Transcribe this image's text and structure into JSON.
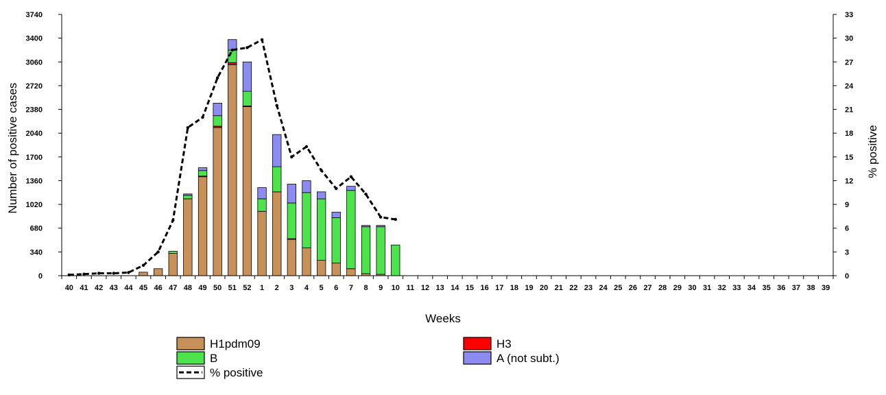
{
  "chart_data": {
    "type": "bar",
    "categories": [
      "40",
      "41",
      "42",
      "43",
      "44",
      "45",
      "46",
      "47",
      "48",
      "49",
      "50",
      "51",
      "52",
      "1",
      "2",
      "3",
      "4",
      "5",
      "6",
      "7",
      "8",
      "9",
      "10",
      "11",
      "12",
      "13",
      "14",
      "15",
      "16",
      "17",
      "18",
      "19",
      "20",
      "21",
      "22",
      "23",
      "24",
      "25",
      "26",
      "27",
      "28",
      "29",
      "30",
      "31",
      "32",
      "33",
      "34",
      "35",
      "36",
      "37",
      "38",
      "39"
    ],
    "series": [
      {
        "name": "H1pdm09",
        "color": "#c8915a",
        "values": [
          0,
          0,
          0,
          0,
          0,
          50,
          100,
          320,
          1100,
          1420,
          2120,
          3020,
          2420,
          920,
          1200,
          520,
          400,
          220,
          180,
          100,
          30,
          20,
          0,
          0,
          0,
          0,
          0,
          0,
          0,
          0,
          0,
          0,
          0,
          0,
          0,
          0,
          0,
          0,
          0,
          0,
          0,
          0,
          0,
          0,
          0,
          0,
          0,
          0,
          0,
          0,
          0,
          0
        ]
      },
      {
        "name": "H3",
        "color": "#ff0000",
        "values": [
          0,
          0,
          0,
          0,
          0,
          0,
          0,
          0,
          0,
          5,
          20,
          30,
          10,
          0,
          0,
          10,
          0,
          0,
          0,
          0,
          0,
          0,
          0,
          0,
          0,
          0,
          0,
          0,
          0,
          0,
          0,
          0,
          0,
          0,
          0,
          0,
          0,
          0,
          0,
          0,
          0,
          0,
          0,
          0,
          0,
          0,
          0,
          0,
          0,
          0,
          0,
          0
        ]
      },
      {
        "name": "B",
        "color": "#4de34d",
        "values": [
          0,
          0,
          0,
          0,
          0,
          0,
          0,
          30,
          50,
          80,
          150,
          180,
          210,
          180,
          360,
          510,
          790,
          880,
          650,
          1120,
          670,
          680,
          440,
          0,
          0,
          0,
          0,
          0,
          0,
          0,
          0,
          0,
          0,
          0,
          0,
          0,
          0,
          0,
          0,
          0,
          0,
          0,
          0,
          0,
          0,
          0,
          0,
          0,
          0,
          0,
          0,
          0
        ]
      },
      {
        "name": "A (not subt.)",
        "color": "#8c8cf0",
        "values": [
          0,
          0,
          0,
          0,
          0,
          0,
          0,
          0,
          20,
          40,
          180,
          150,
          420,
          160,
          460,
          270,
          170,
          100,
          80,
          60,
          20,
          20,
          0,
          0,
          0,
          0,
          0,
          0,
          0,
          0,
          0,
          0,
          0,
          0,
          0,
          0,
          0,
          0,
          0,
          0,
          0,
          0,
          0,
          0,
          0,
          0,
          0,
          0,
          0,
          0,
          0,
          0
        ]
      }
    ],
    "line": {
      "name": "% positive",
      "values": [
        0.1,
        0.2,
        0.3,
        0.3,
        0.4,
        1.3,
        3.0,
        7.0,
        18.7,
        20.0,
        25.0,
        28.5,
        28.8,
        29.8,
        21.5,
        15.0,
        16.3,
        13.3,
        11.0,
        12.5,
        10.3,
        7.4,
        7.1
      ]
    },
    "xlabel": "Weeks",
    "ylabel": "Number of positive cases",
    "ylabel_right": "% positive",
    "yticks": [
      "0",
      "340",
      "680",
      "1020",
      "1360",
      "1700",
      "2040",
      "2380",
      "2720",
      "3060",
      "3400",
      "3740"
    ],
    "yticks_right": [
      "0",
      "3",
      "6",
      "9",
      "12",
      "15",
      "18",
      "21",
      "24",
      "27",
      "30",
      "33"
    ],
    "ylim": [
      0,
      3740
    ],
    "ylim_right": [
      0,
      33
    ],
    "grid": false,
    "legend": [
      {
        "label": "H1pdm09",
        "color": "#c8915a",
        "kind": "box"
      },
      {
        "label": "H3",
        "color": "#ff0000",
        "kind": "box"
      },
      {
        "label": "B",
        "color": "#4de34d",
        "kind": "box"
      },
      {
        "label": "A (not subt.)",
        "color": "#8c8cf0",
        "kind": "box"
      },
      {
        "label": "% positive",
        "color": "#000000",
        "kind": "dashed-line"
      }
    ]
  }
}
